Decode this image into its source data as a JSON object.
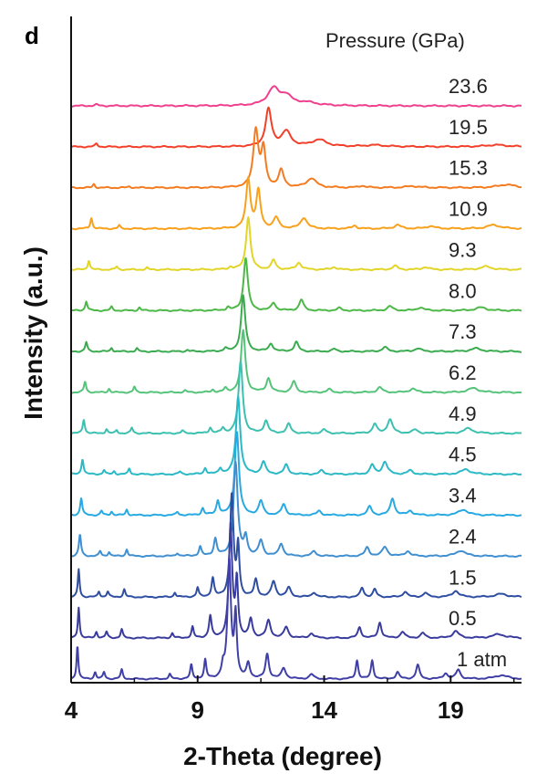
{
  "panel_letter": "d",
  "chart_data": {
    "type": "line",
    "title": "",
    "xlabel": "2-Theta (degree)",
    "ylabel": "Intensity (a.u.)",
    "legend_title": "Pressure (GPa)",
    "xlim": [
      4,
      21.8
    ],
    "x_ticks": [
      4,
      9,
      14,
      19
    ],
    "x_tick_labels": [
      "4",
      "9",
      "14",
      "19"
    ],
    "y_ticks_shown": false,
    "grid": false,
    "legend_placement": "right, per-trace labels",
    "stacked_offset": true,
    "series": [
      {
        "name": "23.6",
        "color": "#ef3f8e",
        "peaks": [
          [
            5.0,
            0.04,
            0.08
          ],
          [
            12.0,
            0.55,
            0.28
          ],
          [
            12.5,
            0.28,
            0.25
          ],
          [
            13.3,
            0.1,
            0.5
          ]
        ]
      },
      {
        "name": "19.5",
        "color": "#f2402a",
        "peaks": [
          [
            5.0,
            0.1,
            0.06
          ],
          [
            11.8,
            1.2,
            0.14
          ],
          [
            12.5,
            0.48,
            0.22
          ],
          [
            13.8,
            0.22,
            0.35
          ],
          [
            16.0,
            0.05,
            0.5
          ],
          [
            20.8,
            0.06,
            0.5
          ]
        ]
      },
      {
        "name": "15.3",
        "color": "#f47b20",
        "peaks": [
          [
            4.9,
            0.12,
            0.05
          ],
          [
            6.3,
            0.04,
            0.07
          ],
          [
            11.3,
            1.85,
            0.12
          ],
          [
            11.6,
            1.2,
            0.1
          ],
          [
            12.3,
            0.55,
            0.12
          ],
          [
            13.5,
            0.3,
            0.22
          ],
          [
            15.5,
            0.06,
            0.15
          ],
          [
            17.5,
            0.05,
            0.3
          ],
          [
            21.2,
            0.1,
            0.4
          ]
        ]
      },
      {
        "name": "10.9",
        "color": "#f9a11b",
        "peaks": [
          [
            4.8,
            0.35,
            0.05
          ],
          [
            5.9,
            0.1,
            0.05
          ],
          [
            11.0,
            1.6,
            0.1
          ],
          [
            11.4,
            1.2,
            0.1
          ],
          [
            12.1,
            0.35,
            0.12
          ],
          [
            13.2,
            0.35,
            0.15
          ],
          [
            15.2,
            0.1,
            0.1
          ],
          [
            16.9,
            0.12,
            0.15
          ],
          [
            18.2,
            0.08,
            0.2
          ],
          [
            20.7,
            0.12,
            0.3
          ]
        ]
      },
      {
        "name": "9.3",
        "color": "#e2d528",
        "peaks": [
          [
            4.7,
            0.3,
            0.05
          ],
          [
            5.8,
            0.1,
            0.05
          ],
          [
            7.0,
            0.06,
            0.05
          ],
          [
            10.3,
            0.08,
            0.08
          ],
          [
            11.0,
            1.7,
            0.1
          ],
          [
            12.0,
            0.3,
            0.1
          ],
          [
            13.0,
            0.22,
            0.12
          ],
          [
            14.4,
            0.08,
            0.12
          ],
          [
            16.8,
            0.12,
            0.12
          ],
          [
            18.0,
            0.08,
            0.15
          ],
          [
            20.4,
            0.1,
            0.25
          ]
        ]
      },
      {
        "name": "8.0",
        "color": "#4db848",
        "peaks": [
          [
            4.6,
            0.3,
            0.05
          ],
          [
            5.6,
            0.12,
            0.05
          ],
          [
            6.7,
            0.1,
            0.05
          ],
          [
            10.2,
            0.1,
            0.07
          ],
          [
            10.9,
            1.7,
            0.1
          ],
          [
            12.0,
            0.25,
            0.1
          ],
          [
            13.1,
            0.35,
            0.1
          ],
          [
            14.6,
            0.08,
            0.1
          ],
          [
            16.6,
            0.14,
            0.12
          ],
          [
            17.8,
            0.1,
            0.15
          ],
          [
            20.2,
            0.1,
            0.25
          ]
        ]
      },
      {
        "name": "7.3",
        "color": "#3aab4f",
        "peaks": [
          [
            4.6,
            0.3,
            0.05
          ],
          [
            5.6,
            0.12,
            0.05
          ],
          [
            6.6,
            0.1,
            0.05
          ],
          [
            8.6,
            0.05,
            0.06
          ],
          [
            10.1,
            0.1,
            0.07
          ],
          [
            10.8,
            1.8,
            0.1
          ],
          [
            11.9,
            0.25,
            0.1
          ],
          [
            12.9,
            0.3,
            0.1
          ],
          [
            14.4,
            0.08,
            0.1
          ],
          [
            16.4,
            0.14,
            0.12
          ],
          [
            17.7,
            0.1,
            0.15
          ],
          [
            20.0,
            0.1,
            0.25
          ]
        ]
      },
      {
        "name": "6.2",
        "color": "#56c37a",
        "peaks": [
          [
            4.55,
            0.35,
            0.05
          ],
          [
            5.5,
            0.12,
            0.05
          ],
          [
            6.5,
            0.18,
            0.05
          ],
          [
            8.5,
            0.06,
            0.06
          ],
          [
            9.6,
            0.08,
            0.06
          ],
          [
            10.1,
            0.12,
            0.07
          ],
          [
            10.8,
            2.0,
            0.1
          ],
          [
            11.8,
            0.45,
            0.1
          ],
          [
            12.8,
            0.35,
            0.1
          ],
          [
            14.2,
            0.1,
            0.1
          ],
          [
            16.2,
            0.16,
            0.12
          ],
          [
            17.5,
            0.12,
            0.15
          ],
          [
            19.9,
            0.14,
            0.25
          ]
        ]
      },
      {
        "name": "4.9",
        "color": "#3cc0b0",
        "peaks": [
          [
            4.5,
            0.45,
            0.05
          ],
          [
            5.4,
            0.14,
            0.05
          ],
          [
            5.8,
            0.1,
            0.05
          ],
          [
            6.4,
            0.18,
            0.05
          ],
          [
            8.4,
            0.08,
            0.06
          ],
          [
            9.5,
            0.18,
            0.06
          ],
          [
            10.0,
            0.16,
            0.07
          ],
          [
            10.7,
            2.3,
            0.1
          ],
          [
            11.7,
            0.4,
            0.1
          ],
          [
            12.6,
            0.3,
            0.1
          ],
          [
            14.0,
            0.12,
            0.1
          ],
          [
            16.0,
            0.3,
            0.1
          ],
          [
            16.6,
            0.45,
            0.12
          ],
          [
            17.6,
            0.12,
            0.12
          ],
          [
            19.7,
            0.16,
            0.22
          ]
        ]
      },
      {
        "name": "4.5",
        "color": "#2bb9c6",
        "peaks": [
          [
            4.45,
            0.5,
            0.05
          ],
          [
            5.3,
            0.14,
            0.05
          ],
          [
            5.7,
            0.1,
            0.05
          ],
          [
            6.3,
            0.18,
            0.05
          ],
          [
            8.3,
            0.08,
            0.06
          ],
          [
            9.3,
            0.2,
            0.06
          ],
          [
            9.9,
            0.18,
            0.07
          ],
          [
            10.6,
            2.5,
            0.1
          ],
          [
            11.6,
            0.4,
            0.1
          ],
          [
            12.5,
            0.3,
            0.1
          ],
          [
            13.9,
            0.12,
            0.1
          ],
          [
            15.9,
            0.3,
            0.1
          ],
          [
            16.4,
            0.4,
            0.12
          ],
          [
            17.4,
            0.12,
            0.12
          ],
          [
            19.6,
            0.16,
            0.22
          ]
        ]
      },
      {
        "name": "3.4",
        "color": "#27a9e1",
        "peaks": [
          [
            4.4,
            0.55,
            0.05
          ],
          [
            5.2,
            0.14,
            0.05
          ],
          [
            5.6,
            0.12,
            0.05
          ],
          [
            6.2,
            0.18,
            0.05
          ],
          [
            8.2,
            0.1,
            0.06
          ],
          [
            9.2,
            0.22,
            0.06
          ],
          [
            9.8,
            0.45,
            0.07
          ],
          [
            10.55,
            2.7,
            0.1
          ],
          [
            11.5,
            0.45,
            0.1
          ],
          [
            12.4,
            0.35,
            0.1
          ],
          [
            13.8,
            0.14,
            0.1
          ],
          [
            15.8,
            0.28,
            0.1
          ],
          [
            16.7,
            0.55,
            0.1
          ],
          [
            17.4,
            0.14,
            0.12
          ],
          [
            19.5,
            0.18,
            0.22
          ]
        ]
      },
      {
        "name": "2.4",
        "color": "#3f8fd1",
        "peaks": [
          [
            4.35,
            0.7,
            0.05
          ],
          [
            5.15,
            0.16,
            0.05
          ],
          [
            5.5,
            0.14,
            0.05
          ],
          [
            6.2,
            0.22,
            0.05
          ],
          [
            8.2,
            0.1,
            0.06
          ],
          [
            9.1,
            0.3,
            0.06
          ],
          [
            9.7,
            0.55,
            0.07
          ],
          [
            10.5,
            3.0,
            0.1
          ],
          [
            10.9,
            0.6,
            0.08
          ],
          [
            11.5,
            0.5,
            0.1
          ],
          [
            12.3,
            0.4,
            0.1
          ],
          [
            13.6,
            0.16,
            0.1
          ],
          [
            15.7,
            0.28,
            0.1
          ],
          [
            16.4,
            0.3,
            0.12
          ],
          [
            17.3,
            0.16,
            0.12
          ],
          [
            19.4,
            0.18,
            0.22
          ]
        ]
      },
      {
        "name": "1.5",
        "color": "#2e4ea1",
        "peaks": [
          [
            4.3,
            0.9,
            0.04
          ],
          [
            5.1,
            0.18,
            0.05
          ],
          [
            5.45,
            0.18,
            0.05
          ],
          [
            6.1,
            0.25,
            0.05
          ],
          [
            8.1,
            0.15,
            0.05
          ],
          [
            9.0,
            0.3,
            0.05
          ],
          [
            9.6,
            0.6,
            0.06
          ],
          [
            10.35,
            3.3,
            0.08
          ],
          [
            10.6,
            1.6,
            0.06
          ],
          [
            11.3,
            0.55,
            0.08
          ],
          [
            12.0,
            0.5,
            0.1
          ],
          [
            12.6,
            0.3,
            0.1
          ],
          [
            13.6,
            0.15,
            0.1
          ],
          [
            15.5,
            0.3,
            0.08
          ],
          [
            16.0,
            0.25,
            0.08
          ],
          [
            17.2,
            0.18,
            0.1
          ],
          [
            18.0,
            0.14,
            0.1
          ],
          [
            19.2,
            0.2,
            0.15
          ],
          [
            21.0,
            0.1,
            0.3
          ]
        ]
      },
      {
        "name": "0.5",
        "color": "#3a3c9d",
        "peaks": [
          [
            4.3,
            1.0,
            0.04
          ],
          [
            5.0,
            0.2,
            0.05
          ],
          [
            5.4,
            0.2,
            0.05
          ],
          [
            6.0,
            0.28,
            0.05
          ],
          [
            8.0,
            0.15,
            0.05
          ],
          [
            8.8,
            0.35,
            0.05
          ],
          [
            9.5,
            0.7,
            0.06
          ],
          [
            10.3,
            3.6,
            0.08
          ],
          [
            10.55,
            1.8,
            0.06
          ],
          [
            11.1,
            0.6,
            0.08
          ],
          [
            11.8,
            0.55,
            0.1
          ],
          [
            12.5,
            0.35,
            0.1
          ],
          [
            13.5,
            0.15,
            0.1
          ],
          [
            15.4,
            0.35,
            0.08
          ],
          [
            16.2,
            0.5,
            0.08
          ],
          [
            17.1,
            0.2,
            0.1
          ],
          [
            17.9,
            0.16,
            0.1
          ],
          [
            19.2,
            0.22,
            0.15
          ],
          [
            20.9,
            0.12,
            0.3
          ]
        ]
      },
      {
        "name": "1 atm",
        "color": "#3f3fa6",
        "peaks": [
          [
            4.25,
            1.1,
            0.04
          ],
          [
            4.95,
            0.22,
            0.05
          ],
          [
            5.3,
            0.22,
            0.05
          ],
          [
            6.0,
            0.3,
            0.05
          ],
          [
            7.9,
            0.15,
            0.05
          ],
          [
            8.75,
            0.45,
            0.05
          ],
          [
            9.3,
            0.6,
            0.05
          ],
          [
            10.0,
            0.35,
            0.06
          ],
          [
            10.25,
            3.8,
            0.08
          ],
          [
            10.5,
            2.0,
            0.06
          ],
          [
            11.0,
            0.5,
            0.08
          ],
          [
            11.75,
            0.8,
            0.08
          ],
          [
            12.4,
            0.35,
            0.1
          ],
          [
            13.5,
            0.15,
            0.1
          ],
          [
            15.3,
            0.6,
            0.06
          ],
          [
            15.9,
            0.6,
            0.06
          ],
          [
            16.9,
            0.22,
            0.08
          ],
          [
            17.7,
            0.45,
            0.08
          ],
          [
            18.8,
            0.18,
            0.1
          ],
          [
            19.3,
            0.3,
            0.1
          ],
          [
            21.0,
            0.12,
            0.3
          ]
        ]
      }
    ]
  }
}
